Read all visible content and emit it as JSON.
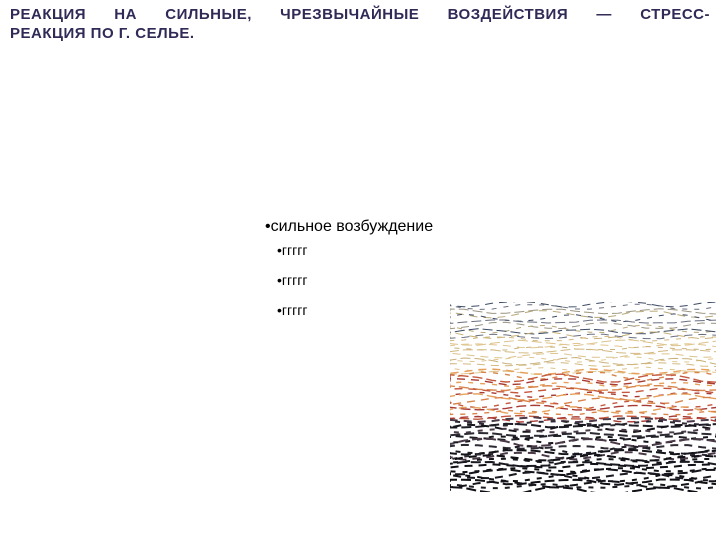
{
  "title": {
    "line1": "РЕАКЦИЯ НА СИЛЬНЫЕ, ЧРЕЗВЫЧАЙНЫЕ ВОЗДЕЙСТВИЯ — СТРЕСС-",
    "line2": "РЕАКЦИЯ ПО Г. СЕЛЬЕ.",
    "color": "#2f2a56",
    "fontsize": 15
  },
  "bullets": {
    "color": "#000000",
    "fontsize_main": 16,
    "fontsize_sub": 14,
    "main": "сильное возбуждение",
    "sub1": "ггггг",
    "sub2": "ггггг",
    "sub3": "ггггг",
    "marker": "•"
  },
  "art": {
    "background": "#ffffff",
    "strokes": {
      "top": [
        "#3b4a63",
        "#6a6f80",
        "#9a9480",
        "#b8a878"
      ],
      "upper": [
        "#c8b078",
        "#d2b880",
        "#dcc28a",
        "#e0c690"
      ],
      "mid": [
        "#e6a05a",
        "#d8844a",
        "#c4583e",
        "#a83a34"
      ],
      "lower": [
        "#4a3a48",
        "#2e2a34",
        "#1e1c24",
        "#15141a"
      ],
      "bottom": [
        "#0f0f14",
        "#14141a",
        "#1a1a22",
        "#101016"
      ]
    },
    "dash": "8 6",
    "dash2": "5 7",
    "dash3": "10 4",
    "linewidth_thin": 1,
    "linewidth_mid": 1.4,
    "linewidth_thick": 2
  }
}
